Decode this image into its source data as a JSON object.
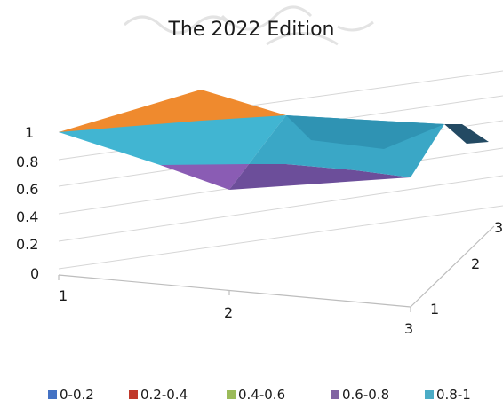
{
  "chart_data": {
    "type": "surface-3d",
    "title": "The 2022 Edition",
    "x_categories": [
      "1",
      "2",
      "3"
    ],
    "depth_categories": [
      "1",
      "2",
      "3"
    ],
    "z_ticks": [
      "0",
      "0.2",
      "0.4",
      "0.6",
      "0.8",
      "1"
    ],
    "ylim": [
      0,
      1
    ],
    "legend": {
      "position": "bottom",
      "entries": [
        {
          "label": "0-0.2",
          "color": "#4472c4"
        },
        {
          "label": "0.2-0.4",
          "color": "#c0392b"
        },
        {
          "label": "0.4-0.6",
          "color": "#9bbb59"
        },
        {
          "label": "0.6-0.8",
          "color": "#8064a2"
        },
        {
          "label": "0.8-1",
          "color": "#4bacc6"
        }
      ]
    },
    "surface_values": [
      [
        1.0,
        0.8,
        1.0
      ],
      [
        1.0,
        0.75,
        1.0
      ],
      [
        1.0,
        1.0,
        0.95
      ]
    ],
    "surface_colors": {
      "top": "#3db2cf",
      "low": "#7a52a8",
      "peak": "#ef8a2e",
      "dark": "#2c4f66",
      "mid": "#37a1c0"
    }
  }
}
